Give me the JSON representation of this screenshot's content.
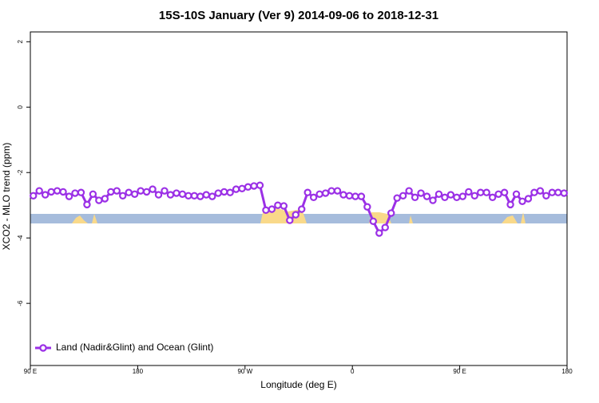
{
  "chart_data": {
    "type": "line",
    "title": "15S-10S January (Ver 9)   2014-09-06 to 2018-12-31",
    "x_label": "Longitude (deg E)",
    "y_label": "XCO2 - MLO trend (ppm)",
    "x": [
      92.5,
      97.5,
      102.5,
      107.5,
      112.5,
      117.5,
      122.5,
      127.5,
      132.5,
      137.5,
      142.5,
      147.5,
      152.5,
      157.5,
      162.5,
      167.5,
      172.5,
      177.5,
      182.5,
      187.5,
      192.5,
      197.5,
      202.5,
      207.5,
      212.5,
      217.5,
      222.5,
      227.5,
      232.5,
      237.5,
      242.5,
      247.5,
      252.5,
      257.5,
      262.5,
      267.5,
      272.5,
      277.5,
      282.5,
      287.5,
      292.5,
      297.5,
      302.5,
      307.5,
      312.5,
      317.5,
      322.5,
      327.5,
      332.5,
      337.5,
      342.5,
      347.5,
      352.5,
      357.5,
      362.5,
      367.5,
      372.5,
      377.5,
      382.5,
      387.5,
      392.5,
      397.5,
      402.5,
      407.5,
      412.5,
      417.5,
      422.5,
      427.5,
      432.5,
      437.5,
      442.5,
      447.5,
      452.5,
      457.5,
      462.5,
      467.5,
      472.5,
      477.5,
      482.5,
      487.5,
      492.5,
      497.5,
      502.5,
      507.5,
      512.5,
      517.5,
      522.5,
      527.5,
      532.5,
      537.5
    ],
    "series": [
      {
        "name": "Land (Nadir&Glint) and Ocean (Glint)",
        "color": "#9b30e6",
        "values": [
          -2.71,
          -2.56,
          -2.68,
          -2.59,
          -2.56,
          -2.59,
          -2.73,
          -2.63,
          -2.61,
          -2.98,
          -2.66,
          -2.85,
          -2.8,
          -2.59,
          -2.56,
          -2.71,
          -2.61,
          -2.66,
          -2.56,
          -2.59,
          -2.51,
          -2.68,
          -2.56,
          -2.68,
          -2.63,
          -2.66,
          -2.71,
          -2.71,
          -2.73,
          -2.68,
          -2.73,
          -2.63,
          -2.59,
          -2.61,
          -2.51,
          -2.49,
          -2.44,
          -2.41,
          -2.39,
          -3.15,
          -3.12,
          -3.0,
          -3.02,
          -3.46,
          -3.29,
          -3.12,
          -2.61,
          -2.76,
          -2.66,
          -2.63,
          -2.56,
          -2.56,
          -2.68,
          -2.71,
          -2.73,
          -2.73,
          -3.05,
          -3.49,
          -3.85,
          -3.68,
          -3.24,
          -2.78,
          -2.71,
          -2.56,
          -2.76,
          -2.63,
          -2.73,
          -2.85,
          -2.66,
          -2.76,
          -2.68,
          -2.76,
          -2.73,
          -2.59,
          -2.71,
          -2.61,
          -2.61,
          -2.76,
          -2.66,
          -2.61,
          -2.98,
          -2.66,
          -2.88,
          -2.8,
          -2.61,
          -2.56,
          -2.71,
          -2.61,
          -2.61,
          -2.63
        ]
      }
    ],
    "xlim": [
      90,
      540
    ],
    "xticks": [
      {
        "value": 90,
        "label": "90 E"
      },
      180,
      {
        "value": 270,
        "label": "90 W"
      },
      {
        "value": 360,
        "label": "0"
      },
      {
        "value": 450,
        "label": "90 E"
      },
      {
        "value": 540,
        "label": "180"
      }
    ],
    "ylim": [
      -7.9,
      2.3
    ],
    "yticks": [
      2,
      0,
      -2,
      -4,
      -6
    ],
    "legend": "bottomleft"
  }
}
